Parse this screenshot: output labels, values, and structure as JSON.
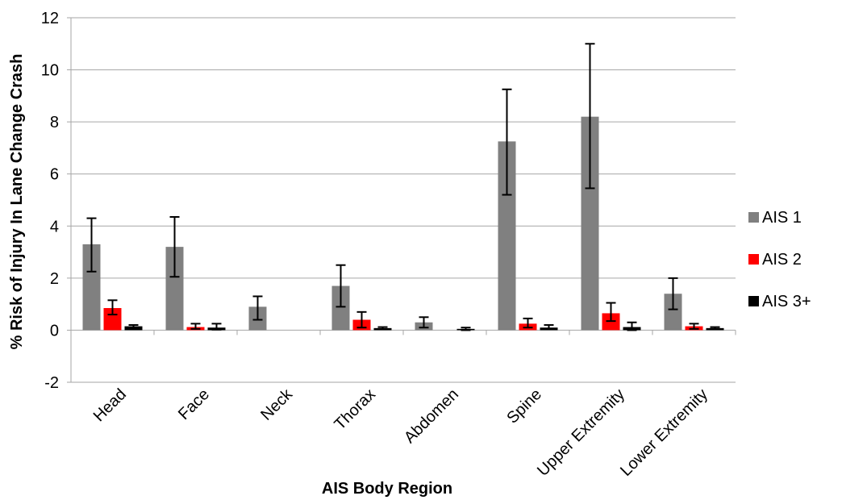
{
  "chart_data": {
    "type": "bar",
    "title": "",
    "xlabel": "AIS Body Region",
    "ylabel": "% Risk of Injury In Lane Change Crash",
    "ylim": [
      -2,
      12
    ],
    "yticks": [
      -2,
      0,
      2,
      4,
      6,
      8,
      10,
      12
    ],
    "grid": true,
    "legend_position": "right",
    "categories": [
      "Head",
      "Face",
      "Neck",
      "Thorax",
      "Abdomen",
      "Spine",
      "Upper Extremity",
      "Lower Extremity"
    ],
    "series": [
      {
        "name": "AIS 1",
        "color": "#808080",
        "values": [
          3.3,
          3.2,
          0.9,
          1.7,
          0.3,
          7.25,
          8.2,
          1.4
        ],
        "error_low": [
          2.25,
          2.05,
          0.4,
          0.9,
          0.1,
          5.2,
          5.45,
          0.8
        ],
        "error_high": [
          4.3,
          4.35,
          1.3,
          2.5,
          0.5,
          9.25,
          11.0,
          2.0
        ]
      },
      {
        "name": "AIS 2",
        "color": "#ff0000",
        "values": [
          0.85,
          0.12,
          null,
          0.4,
          null,
          0.25,
          0.65,
          0.15
        ],
        "error_low": [
          0.6,
          0.05,
          null,
          0.1,
          null,
          0.1,
          0.35,
          0.05
        ],
        "error_high": [
          1.15,
          0.25,
          null,
          0.7,
          null,
          0.45,
          1.05,
          0.25
        ]
      },
      {
        "name": "AIS 3+",
        "color": "#000000",
        "values": [
          0.15,
          0.1,
          null,
          0.08,
          0.05,
          0.1,
          0.12,
          0.08
        ],
        "error_low": [
          0.1,
          0.02,
          null,
          0.04,
          0.0,
          0.05,
          0.0,
          0.05
        ],
        "error_high": [
          0.2,
          0.25,
          null,
          0.12,
          0.1,
          0.2,
          0.3,
          0.12
        ]
      }
    ]
  }
}
